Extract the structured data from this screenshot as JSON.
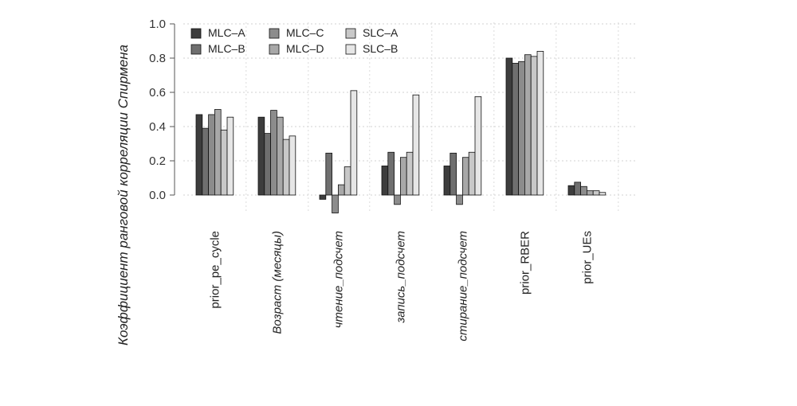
{
  "chart_data": {
    "type": "bar",
    "ylabel": "Коэффициент ранговой корреляции Спирмена",
    "ylim": [
      -0.15,
      1.0
    ],
    "yticks": [
      "1.0",
      "0.8",
      "0.6",
      "0.4",
      "0.2",
      "0.0"
    ],
    "grid": true,
    "legend_position": "top-left",
    "categories": [
      {
        "label": "prior_pe_cycle",
        "italic": false
      },
      {
        "label": "Возраст (месяцы)",
        "italic": true
      },
      {
        "label": "чтение_подсчет",
        "italic": true
      },
      {
        "label": "запись_подсчет",
        "italic": true
      },
      {
        "label": "стирание_подсчет",
        "italic": true
      },
      {
        "label": "prior_RBER",
        "italic": false
      },
      {
        "label": "prior_UEs",
        "italic": false
      }
    ],
    "series": [
      {
        "name": "MLC–A",
        "color": "#3d3d3d",
        "values": [
          0.47,
          0.455,
          -0.025,
          0.17,
          0.17,
          0.8,
          0.055
        ]
      },
      {
        "name": "MLC–B",
        "color": "#6f6f6f",
        "values": [
          0.39,
          0.36,
          0.245,
          0.25,
          0.245,
          0.77,
          0.075
        ]
      },
      {
        "name": "MLC–C",
        "color": "#8c8c8c",
        "values": [
          0.47,
          0.495,
          -0.105,
          -0.055,
          -0.055,
          0.78,
          0.05
        ]
      },
      {
        "name": "MLC–D",
        "color": "#a8a8a8",
        "values": [
          0.5,
          0.455,
          0.06,
          0.22,
          0.22,
          0.82,
          0.025
        ]
      },
      {
        "name": "SLC–A",
        "color": "#c8c8c8",
        "values": [
          0.38,
          0.325,
          0.165,
          0.25,
          0.25,
          0.81,
          0.025
        ]
      },
      {
        "name": "SLC–B",
        "color": "#e6e6e6",
        "values": [
          0.455,
          0.345,
          0.61,
          0.585,
          0.575,
          0.84,
          0.015
        ]
      }
    ]
  }
}
